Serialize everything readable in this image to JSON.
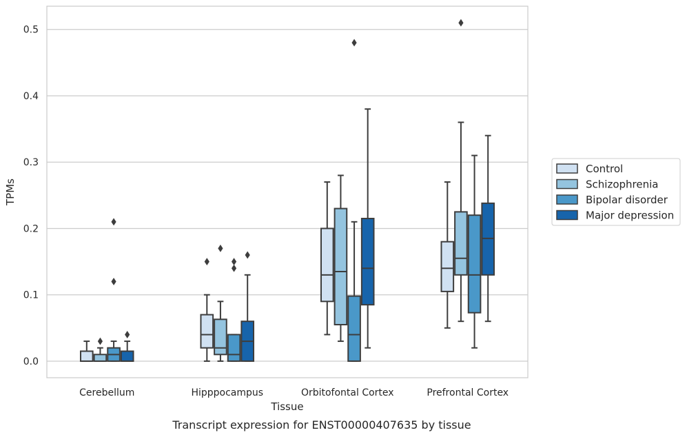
{
  "chart_data": {
    "type": "boxplot",
    "caption": "Transcript expression for ENST00000407635 by tissue",
    "xlabel": "Tissue",
    "ylabel": "TPMs",
    "ylim": [
      -0.025,
      0.535
    ],
    "yticks": [
      0.0,
      0.1,
      0.2,
      0.3,
      0.4,
      0.5
    ],
    "ytick_labels": [
      "0.0",
      "0.1",
      "0.2",
      "0.3",
      "0.4",
      "0.5"
    ],
    "grid": "horizontal",
    "legend_position": "right",
    "categories": [
      "Cerebellum",
      "Hipppocampus",
      "Orbitofontal Cortex",
      "Prefrontal Cortex"
    ],
    "series": [
      {
        "name": "Control",
        "color": "#d0e1f2",
        "boxes": [
          {
            "whislo": 0.0,
            "q1": 0.0,
            "med": 0.0,
            "q3": 0.015,
            "whishi": 0.03,
            "fliers": []
          },
          {
            "whislo": 0.0,
            "q1": 0.02,
            "med": 0.04,
            "q3": 0.07,
            "whishi": 0.1,
            "fliers": [
              0.15
            ]
          },
          {
            "whislo": 0.04,
            "q1": 0.09,
            "med": 0.13,
            "q3": 0.2,
            "whishi": 0.27,
            "fliers": []
          },
          {
            "whislo": 0.05,
            "q1": 0.105,
            "med": 0.14,
            "q3": 0.18,
            "whishi": 0.27,
            "fliers": []
          }
        ]
      },
      {
        "name": "Schizophrenia",
        "color": "#94c4df",
        "boxes": [
          {
            "whislo": 0.0,
            "q1": 0.0,
            "med": 0.0,
            "q3": 0.01,
            "whishi": 0.02,
            "fliers": [
              0.03
            ]
          },
          {
            "whislo": 0.0,
            "q1": 0.01,
            "med": 0.02,
            "q3": 0.063,
            "whishi": 0.09,
            "fliers": [
              0.17
            ]
          },
          {
            "whislo": 0.03,
            "q1": 0.055,
            "med": 0.135,
            "q3": 0.23,
            "whishi": 0.28,
            "fliers": []
          },
          {
            "whislo": 0.06,
            "q1": 0.13,
            "med": 0.155,
            "q3": 0.225,
            "whishi": 0.36,
            "fliers": [
              0.51
            ]
          }
        ]
      },
      {
        "name": "Bipolar disorder",
        "color": "#4a98c9",
        "boxes": [
          {
            "whislo": 0.0,
            "q1": 0.0,
            "med": 0.01,
            "q3": 0.02,
            "whishi": 0.03,
            "fliers": [
              0.12,
              0.21
            ]
          },
          {
            "whislo": 0.0,
            "q1": 0.0,
            "med": 0.01,
            "q3": 0.04,
            "whishi": 0.04,
            "fliers": [
              0.14,
              0.15
            ]
          },
          {
            "whislo": 0.0,
            "q1": 0.0,
            "med": 0.04,
            "q3": 0.098,
            "whishi": 0.21,
            "fliers": [
              0.48
            ]
          },
          {
            "whislo": 0.02,
            "q1": 0.073,
            "med": 0.13,
            "q3": 0.22,
            "whishi": 0.31,
            "fliers": []
          }
        ]
      },
      {
        "name": "Major depression",
        "color": "#1764ab",
        "boxes": [
          {
            "whislo": 0.0,
            "q1": 0.0,
            "med": 0.0,
            "q3": 0.015,
            "whishi": 0.03,
            "fliers": [
              0.04
            ]
          },
          {
            "whislo": 0.0,
            "q1": 0.0,
            "med": 0.03,
            "q3": 0.06,
            "whishi": 0.13,
            "fliers": [
              0.16
            ]
          },
          {
            "whislo": 0.02,
            "q1": 0.085,
            "med": 0.14,
            "q3": 0.215,
            "whishi": 0.38,
            "fliers": []
          },
          {
            "whislo": 0.06,
            "q1": 0.13,
            "med": 0.185,
            "q3": 0.238,
            "whishi": 0.34,
            "fliers": []
          }
        ]
      }
    ]
  }
}
